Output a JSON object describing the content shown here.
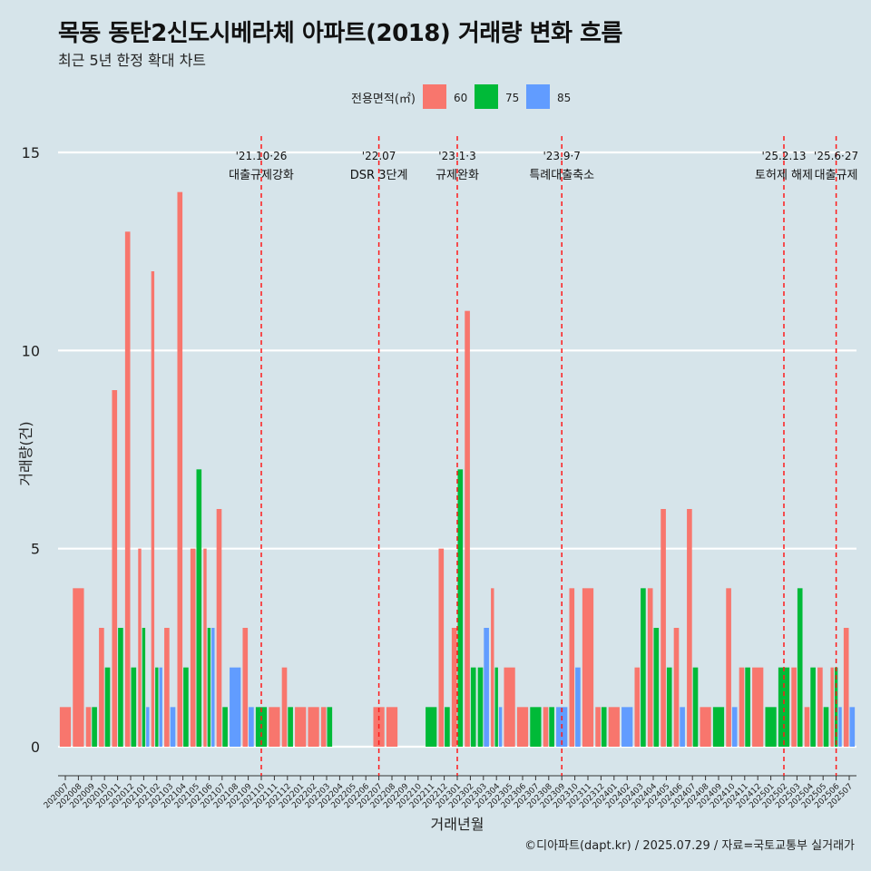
{
  "title": "목동 동탄2신도시베라체 아파트(2018) 거래량 변화 흐름",
  "subtitle": "최근 5년 한정 확대 차트",
  "caption": "©디아파트(dapt.kr) / 2025.07.29 / 자료=국토교통부 실거래가",
  "chart_data": {
    "type": "bar",
    "xlabel": "거래년월",
    "ylabel": "거래량(건)",
    "ylim": [
      0,
      15
    ],
    "yticks": [
      0,
      5,
      10,
      15
    ],
    "legend": {
      "title": "전용면적(㎡)",
      "position": "top"
    },
    "categories": [
      "202007",
      "202008",
      "202009",
      "202010",
      "202011",
      "202012",
      "202101",
      "202102",
      "202103",
      "202104",
      "202105",
      "202106",
      "202107",
      "202108",
      "202109",
      "202110",
      "202111",
      "202112",
      "202201",
      "202202",
      "202203",
      "202204",
      "202205",
      "202206",
      "202207",
      "202208",
      "202209",
      "202210",
      "202211",
      "202212",
      "202301",
      "202302",
      "202303",
      "202304",
      "202305",
      "202306",
      "202307",
      "202308",
      "202309",
      "202310",
      "202311",
      "202312",
      "202401",
      "202402",
      "202403",
      "202404",
      "202405",
      "202406",
      "202407",
      "202408",
      "202409",
      "202410",
      "202411",
      "202412",
      "202501",
      "202502",
      "202503",
      "202504",
      "202505",
      "202506",
      "202507"
    ],
    "series": [
      {
        "name": "60",
        "color": "#f8766d",
        "values": [
          1,
          4,
          1,
          3,
          9,
          13,
          5,
          12,
          3,
          14,
          5,
          5,
          6,
          0,
          3,
          0,
          1,
          2,
          1,
          1,
          1,
          0,
          0,
          0,
          1,
          1,
          0,
          0,
          0,
          5,
          3,
          11,
          0,
          4,
          2,
          1,
          0,
          1,
          0,
          4,
          4,
          1,
          1,
          0,
          2,
          4,
          6,
          3,
          6,
          1,
          0,
          4,
          2,
          2,
          0,
          0,
          2,
          1,
          2,
          2,
          3
        ]
      },
      {
        "name": "75",
        "color": "#00ba38",
        "values": [
          0,
          0,
          1,
          2,
          3,
          2,
          3,
          2,
          0,
          2,
          7,
          3,
          1,
          0,
          0,
          1,
          0,
          1,
          0,
          0,
          1,
          0,
          0,
          0,
          0,
          0,
          0,
          0,
          1,
          1,
          7,
          2,
          2,
          2,
          0,
          0,
          1,
          1,
          0,
          0,
          0,
          1,
          0,
          0,
          4,
          3,
          2,
          0,
          2,
          0,
          1,
          0,
          2,
          0,
          1,
          2,
          4,
          2,
          1,
          2,
          0
        ]
      },
      {
        "name": "85",
        "color": "#619cff",
        "values": [
          0,
          0,
          0,
          0,
          0,
          0,
          1,
          2,
          1,
          0,
          0,
          3,
          0,
          2,
          1,
          0,
          0,
          0,
          0,
          0,
          0,
          0,
          0,
          0,
          0,
          0,
          0,
          0,
          0,
          0,
          0,
          0,
          3,
          1,
          0,
          0,
          0,
          0,
          1,
          2,
          0,
          0,
          0,
          1,
          0,
          0,
          0,
          1,
          0,
          0,
          0,
          1,
          0,
          0,
          0,
          0,
          0,
          0,
          0,
          1,
          1
        ]
      }
    ],
    "annotations": [
      {
        "at": "202110",
        "date": "'21.10·26",
        "label": "대출규제강화"
      },
      {
        "at": "202207",
        "date": "'22.07",
        "label": "DSR 3단계"
      },
      {
        "at": "202301",
        "date": "'23.1·3",
        "label": "규제완화"
      },
      {
        "at": "202309",
        "date": "'23.9·7",
        "label": "특례대출축소"
      },
      {
        "at": "202502",
        "date": "'25.2.13",
        "label": "토허제 해제"
      },
      {
        "at": "202506",
        "date": "'25.6·27",
        "label": "대출규제"
      }
    ]
  }
}
